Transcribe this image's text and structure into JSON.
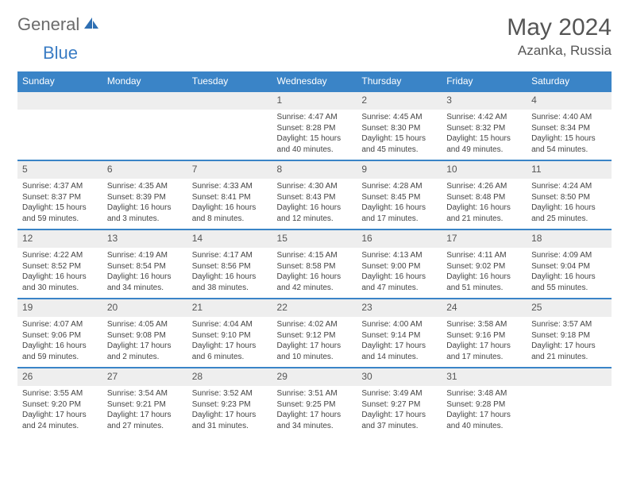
{
  "brand": {
    "part1": "General",
    "part2": "Blue"
  },
  "title": "May 2024",
  "location": "Azanka, Russia",
  "colors": {
    "header_bg": "#3a84c7",
    "header_text": "#ffffff",
    "daynum_bg": "#eeeeee",
    "divider": "#3a84c7",
    "text": "#444444",
    "logo_gray": "#6b6b6b",
    "logo_blue": "#3a7cc4"
  },
  "dow": [
    "Sunday",
    "Monday",
    "Tuesday",
    "Wednesday",
    "Thursday",
    "Friday",
    "Saturday"
  ],
  "weeks": [
    [
      null,
      null,
      null,
      {
        "d": "1",
        "sr": "4:47 AM",
        "ss": "8:28 PM",
        "dl": "15 hours and 40 minutes."
      },
      {
        "d": "2",
        "sr": "4:45 AM",
        "ss": "8:30 PM",
        "dl": "15 hours and 45 minutes."
      },
      {
        "d": "3",
        "sr": "4:42 AM",
        "ss": "8:32 PM",
        "dl": "15 hours and 49 minutes."
      },
      {
        "d": "4",
        "sr": "4:40 AM",
        "ss": "8:34 PM",
        "dl": "15 hours and 54 minutes."
      }
    ],
    [
      {
        "d": "5",
        "sr": "4:37 AM",
        "ss": "8:37 PM",
        "dl": "15 hours and 59 minutes."
      },
      {
        "d": "6",
        "sr": "4:35 AM",
        "ss": "8:39 PM",
        "dl": "16 hours and 3 minutes."
      },
      {
        "d": "7",
        "sr": "4:33 AM",
        "ss": "8:41 PM",
        "dl": "16 hours and 8 minutes."
      },
      {
        "d": "8",
        "sr": "4:30 AM",
        "ss": "8:43 PM",
        "dl": "16 hours and 12 minutes."
      },
      {
        "d": "9",
        "sr": "4:28 AM",
        "ss": "8:45 PM",
        "dl": "16 hours and 17 minutes."
      },
      {
        "d": "10",
        "sr": "4:26 AM",
        "ss": "8:48 PM",
        "dl": "16 hours and 21 minutes."
      },
      {
        "d": "11",
        "sr": "4:24 AM",
        "ss": "8:50 PM",
        "dl": "16 hours and 25 minutes."
      }
    ],
    [
      {
        "d": "12",
        "sr": "4:22 AM",
        "ss": "8:52 PM",
        "dl": "16 hours and 30 minutes."
      },
      {
        "d": "13",
        "sr": "4:19 AM",
        "ss": "8:54 PM",
        "dl": "16 hours and 34 minutes."
      },
      {
        "d": "14",
        "sr": "4:17 AM",
        "ss": "8:56 PM",
        "dl": "16 hours and 38 minutes."
      },
      {
        "d": "15",
        "sr": "4:15 AM",
        "ss": "8:58 PM",
        "dl": "16 hours and 42 minutes."
      },
      {
        "d": "16",
        "sr": "4:13 AM",
        "ss": "9:00 PM",
        "dl": "16 hours and 47 minutes."
      },
      {
        "d": "17",
        "sr": "4:11 AM",
        "ss": "9:02 PM",
        "dl": "16 hours and 51 minutes."
      },
      {
        "d": "18",
        "sr": "4:09 AM",
        "ss": "9:04 PM",
        "dl": "16 hours and 55 minutes."
      }
    ],
    [
      {
        "d": "19",
        "sr": "4:07 AM",
        "ss": "9:06 PM",
        "dl": "16 hours and 59 minutes."
      },
      {
        "d": "20",
        "sr": "4:05 AM",
        "ss": "9:08 PM",
        "dl": "17 hours and 2 minutes."
      },
      {
        "d": "21",
        "sr": "4:04 AM",
        "ss": "9:10 PM",
        "dl": "17 hours and 6 minutes."
      },
      {
        "d": "22",
        "sr": "4:02 AM",
        "ss": "9:12 PM",
        "dl": "17 hours and 10 minutes."
      },
      {
        "d": "23",
        "sr": "4:00 AM",
        "ss": "9:14 PM",
        "dl": "17 hours and 14 minutes."
      },
      {
        "d": "24",
        "sr": "3:58 AM",
        "ss": "9:16 PM",
        "dl": "17 hours and 17 minutes."
      },
      {
        "d": "25",
        "sr": "3:57 AM",
        "ss": "9:18 PM",
        "dl": "17 hours and 21 minutes."
      }
    ],
    [
      {
        "d": "26",
        "sr": "3:55 AM",
        "ss": "9:20 PM",
        "dl": "17 hours and 24 minutes."
      },
      {
        "d": "27",
        "sr": "3:54 AM",
        "ss": "9:21 PM",
        "dl": "17 hours and 27 minutes."
      },
      {
        "d": "28",
        "sr": "3:52 AM",
        "ss": "9:23 PM",
        "dl": "17 hours and 31 minutes."
      },
      {
        "d": "29",
        "sr": "3:51 AM",
        "ss": "9:25 PM",
        "dl": "17 hours and 34 minutes."
      },
      {
        "d": "30",
        "sr": "3:49 AM",
        "ss": "9:27 PM",
        "dl": "17 hours and 37 minutes."
      },
      {
        "d": "31",
        "sr": "3:48 AM",
        "ss": "9:28 PM",
        "dl": "17 hours and 40 minutes."
      },
      null
    ]
  ],
  "labels": {
    "sunrise": "Sunrise:",
    "sunset": "Sunset:",
    "daylight": "Daylight:"
  }
}
